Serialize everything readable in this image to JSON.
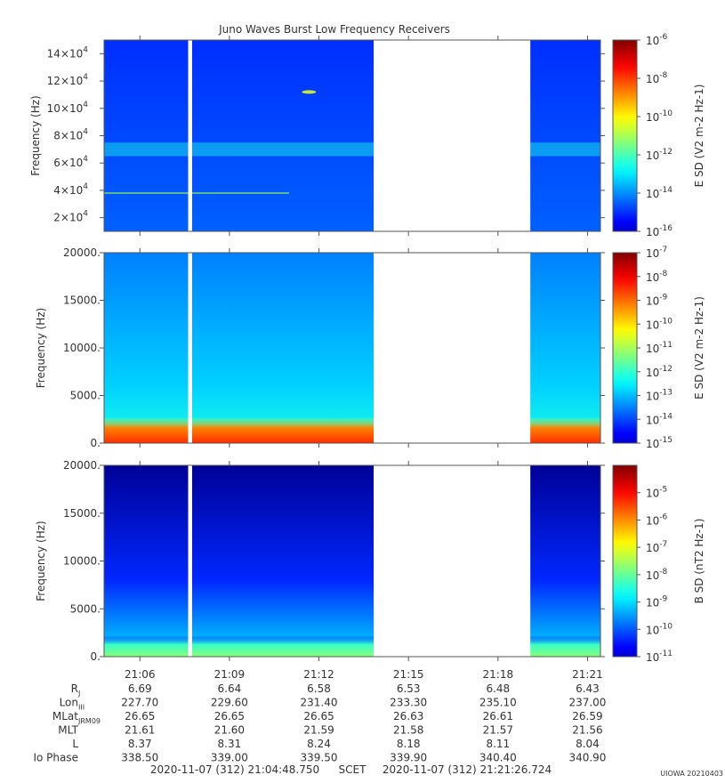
{
  "title": "Juno Waves Burst Low Frequency Receivers",
  "chart_data": [
    {
      "type": "heatmap",
      "panel": "top",
      "ylabel": "Frequency (Hz)",
      "yticks": [
        {
          "mant": "2",
          "exp": "4",
          "value": 20000
        },
        {
          "mant": "4",
          "exp": "4",
          "value": 40000
        },
        {
          "mant": "6",
          "exp": "4",
          "value": 60000
        },
        {
          "mant": "8",
          "exp": "4",
          "value": 80000
        },
        {
          "mant": "10",
          "exp": "4",
          "value": 100000
        },
        {
          "mant": "12",
          "exp": "4",
          "value": 120000
        },
        {
          "mant": "14",
          "exp": "4",
          "value": 140000
        }
      ],
      "ylim": [
        10000,
        150000
      ],
      "colorbar": {
        "label": "E SD (V2 m-2 Hz-1)",
        "scale": "log",
        "range": [
          1e-16,
          1e-06
        ],
        "ticks": [
          "10-6",
          "10-8",
          "10-10",
          "10-12",
          "10-14",
          "10-16"
        ]
      },
      "data_gaps": [
        [
          "21:07:37",
          "21:07:45"
        ],
        [
          "21:13:50",
          "21:19:05"
        ]
      ],
      "background_level": "1e-14",
      "features": [
        {
          "kind": "band",
          "freq_hz": 70000,
          "level": "1e-12"
        },
        {
          "kind": "line",
          "freq_hz": 38000,
          "time_range": [
            "21:04:48",
            "21:11:00"
          ]
        },
        {
          "kind": "spot",
          "freq_hz": 112000,
          "time": "21:11:40"
        }
      ]
    },
    {
      "type": "heatmap",
      "panel": "middle",
      "ylabel": "Frequency (Hz)",
      "yticks": [
        "0.",
        "5000.",
        "10000.",
        "15000.",
        "20000."
      ],
      "ylim": [
        0,
        20000
      ],
      "colorbar": {
        "label": "E SD (V2 m-2 Hz-1)",
        "scale": "log",
        "range": [
          1e-15,
          1e-07
        ],
        "ticks": [
          "10-7",
          "10-8",
          "10-9",
          "10-10",
          "10-11",
          "10-12",
          "10-13",
          "10-14",
          "10-15"
        ]
      },
      "data_gaps": [
        [
          "21:07:37",
          "21:07:45"
        ],
        [
          "21:13:50",
          "21:19:05"
        ]
      ],
      "background_level": "1e-13",
      "features": [
        {
          "kind": "low-frequency band",
          "freq_range_hz": [
            0,
            1500
          ],
          "level": "1e-9"
        }
      ]
    },
    {
      "type": "heatmap",
      "panel": "bottom",
      "ylabel": "Frequency (Hz)",
      "yticks": [
        "0.",
        "5000.",
        "10000.",
        "15000.",
        "20000."
      ],
      "ylim": [
        0,
        20000
      ],
      "colorbar": {
        "label": "B SD (nT2 Hz-1)",
        "scale": "log",
        "range": [
          1e-11,
          0.0001
        ],
        "ticks": [
          "10-5",
          "10-6",
          "10-7",
          "10-8",
          "10-9",
          "10-10",
          "10-11"
        ]
      },
      "data_gaps": [
        [
          "21:07:37",
          "21:07:45"
        ],
        [
          "21:13:50",
          "21:19:05"
        ]
      ],
      "background_level": "1e-10",
      "features": [
        {
          "kind": "low-frequency band",
          "freq_range_hz": [
            0,
            1000
          ],
          "level": "1e-8"
        }
      ]
    }
  ],
  "time_axis": {
    "start": "21:04:48",
    "end": "21:21:26",
    "ticks": [
      "21:06",
      "21:09",
      "21:12",
      "21:15",
      "21:18",
      "21:21"
    ]
  },
  "ephemeris": {
    "rows": [
      {
        "name": "R",
        "sub": "J",
        "values": [
          "6.69",
          "6.64",
          "6.58",
          "6.53",
          "6.48",
          "6.43"
        ]
      },
      {
        "name": "Lon",
        "sub": "III",
        "values": [
          "227.70",
          "229.60",
          "231.40",
          "233.30",
          "235.10",
          "237.00"
        ]
      },
      {
        "name": "MLat",
        "sub": "JRM09",
        "values": [
          "26.65",
          "26.65",
          "26.65",
          "26.63",
          "26.61",
          "26.59"
        ]
      },
      {
        "name": "MLT",
        "sub": "",
        "values": [
          "21.61",
          "21.60",
          "21.59",
          "21.58",
          "21.57",
          "21.56"
        ]
      },
      {
        "name": "L",
        "sub": "",
        "values": [
          "8.37",
          "8.31",
          "8.24",
          "8.18",
          "8.11",
          "8.04"
        ]
      },
      {
        "name": "Io Phase",
        "sub": "",
        "values": [
          "338.50",
          "339.00",
          "339.50",
          "339.90",
          "340.40",
          "340.90"
        ]
      }
    ]
  },
  "footer": {
    "start": "2020-11-07 (312) 21:04:48.750",
    "scet": "SCET",
    "end": "2020-11-07 (312) 21:21:26.724",
    "credit": "UIOWA 20210403"
  }
}
